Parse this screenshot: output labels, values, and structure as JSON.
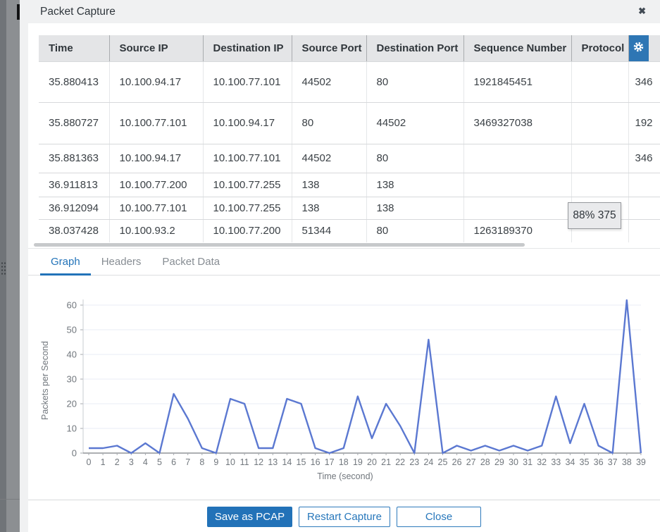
{
  "dialog": {
    "title": "Packet Capture",
    "close_glyph": "✖"
  },
  "table": {
    "columns": {
      "time": "Time",
      "source_ip": "Source IP",
      "destination_ip": "Destination IP",
      "source_port": "Source Port",
      "destination_port": "Destination Port",
      "sequence_number": "Sequence Number",
      "protocol": "Protocol"
    },
    "rows": [
      {
        "time": "35.880413",
        "source_ip": "10.100.94.17",
        "destination_ip": "10.100.77.101",
        "source_port": "44502",
        "destination_port": "80",
        "sequence_number": "1921845451",
        "protocol": "",
        "ack": "346"
      },
      {
        "time": "35.880727",
        "source_ip": "10.100.77.101",
        "destination_ip": "10.100.94.17",
        "source_port": "80",
        "destination_port": "44502",
        "sequence_number": "3469327038",
        "protocol": "",
        "ack": "192"
      },
      {
        "time": "35.881363",
        "source_ip": "10.100.94.17",
        "destination_ip": "10.100.77.101",
        "source_port": "44502",
        "destination_port": "80",
        "sequence_number": "",
        "protocol": "",
        "ack": "346"
      },
      {
        "time": "36.911813",
        "source_ip": "10.100.77.200",
        "destination_ip": "10.100.77.255",
        "source_port": "138",
        "destination_port": "138",
        "sequence_number": "",
        "protocol": "",
        "ack": ""
      },
      {
        "time": "36.912094",
        "source_ip": "10.100.77.101",
        "destination_ip": "10.100.77.255",
        "source_port": "138",
        "destination_port": "138",
        "sequence_number": "",
        "protocol": "",
        "ack": ""
      },
      {
        "time": "38.037428",
        "source_ip": "10.100.93.2",
        "destination_ip": "10.100.77.200",
        "source_port": "51344",
        "destination_port": "80",
        "sequence_number": "1263189370",
        "protocol": "",
        "ack": ""
      }
    ]
  },
  "capture_progress": {
    "label": "88% 375"
  },
  "tabs": {
    "graph": "Graph",
    "headers": "Headers",
    "packet_data": "Packet Data"
  },
  "chart_data": {
    "type": "line",
    "title": "",
    "xlabel": "Time (second)",
    "ylabel": "Packets per Second",
    "x": [
      0,
      1,
      2,
      3,
      4,
      5,
      6,
      7,
      8,
      9,
      10,
      11,
      12,
      13,
      14,
      15,
      16,
      17,
      18,
      19,
      20,
      21,
      22,
      23,
      24,
      25,
      26,
      27,
      28,
      29,
      30,
      31,
      32,
      33,
      34,
      35,
      36,
      37,
      38,
      39
    ],
    "y": [
      2,
      2,
      3,
      0,
      4,
      0,
      24,
      14,
      2,
      0,
      22,
      20,
      2,
      2,
      22,
      20,
      2,
      0,
      2,
      23,
      6,
      20,
      11,
      0,
      46,
      0,
      3,
      1,
      3,
      1,
      3,
      1,
      3,
      23,
      4,
      20,
      3,
      0,
      62,
      0
    ],
    "yticks": [
      0,
      10,
      20,
      30,
      40,
      50,
      60
    ],
    "ylim": [
      0,
      65
    ],
    "xlim": [
      0,
      39
    ],
    "grid": true,
    "legend": "none",
    "line_color": "#5b78d1"
  },
  "footer": {
    "save_pcap": "Save as PCAP",
    "restart": "Restart Capture",
    "close": "Close"
  },
  "colors": {
    "accent_blue": "#2272b8",
    "gear_button_bg": "#2e76b4",
    "table_header_bg": "#e4e5e7",
    "chart_line": "#5b78d1",
    "tooltip_bg": "#e9eaec"
  }
}
